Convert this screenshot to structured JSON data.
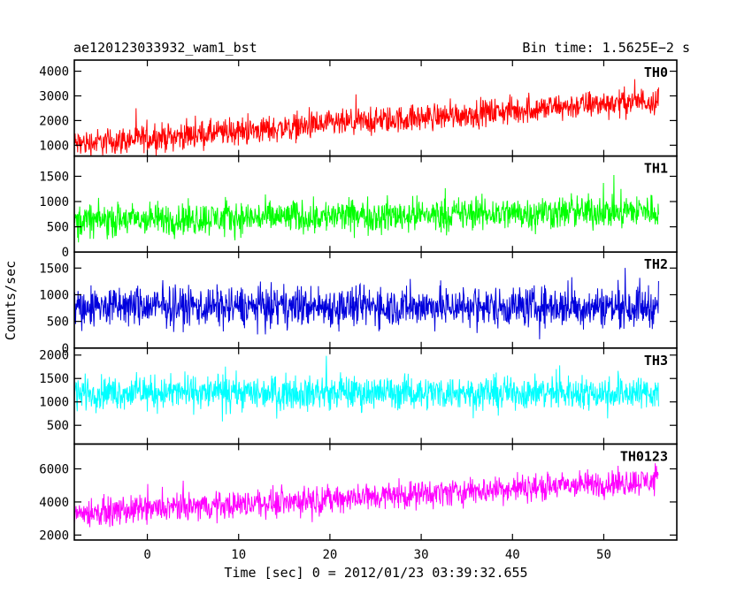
{
  "chart_data": {
    "type": "line",
    "title_left": "ae120123033932_wam1_bst",
    "title_right": "Bin time: 1.5625E−2 s",
    "xlabel": "Time [sec] 0 = 2012/01/23 03:39:32.655",
    "ylabel": "Counts/sec",
    "xlim": [
      -8,
      58
    ],
    "x_ticks": [
      0,
      10,
      20,
      30,
      40,
      50
    ],
    "x_data_range": [
      -8,
      56
    ],
    "grid": false,
    "panels": [
      {
        "name": "TH0",
        "color": "#ff0000",
        "ylim": [
          560,
          4450
        ],
        "y_ticks": [
          1000,
          2000,
          3000,
          4000
        ],
        "trend_start": 1050,
        "trend_end": 2850,
        "spread": 700
      },
      {
        "name": "TH1",
        "color": "#00ff00",
        "ylim": [
          0,
          1900
        ],
        "y_ticks": [
          0,
          500,
          1000,
          1500
        ],
        "trend_start": 620,
        "trend_end": 820,
        "spread": 420
      },
      {
        "name": "TH2",
        "color": "#0000dd",
        "ylim": [
          0,
          1800
        ],
        "y_ticks": [
          0,
          500,
          1000,
          1500
        ],
        "trend_start": 780,
        "trend_end": 780,
        "spread": 480
      },
      {
        "name": "TH3",
        "color": "#00ffff",
        "ylim": [
          100,
          2150
        ],
        "y_ticks": [
          500,
          1000,
          1500,
          2000
        ],
        "trend_start": 1200,
        "trend_end": 1200,
        "spread": 450
      },
      {
        "name": "TH0123",
        "color": "#ff00ff",
        "ylim": [
          1700,
          7500
        ],
        "y_ticks": [
          2000,
          4000,
          6000
        ],
        "trend_start": 3300,
        "trend_end": 5300,
        "spread": 1050
      }
    ]
  }
}
